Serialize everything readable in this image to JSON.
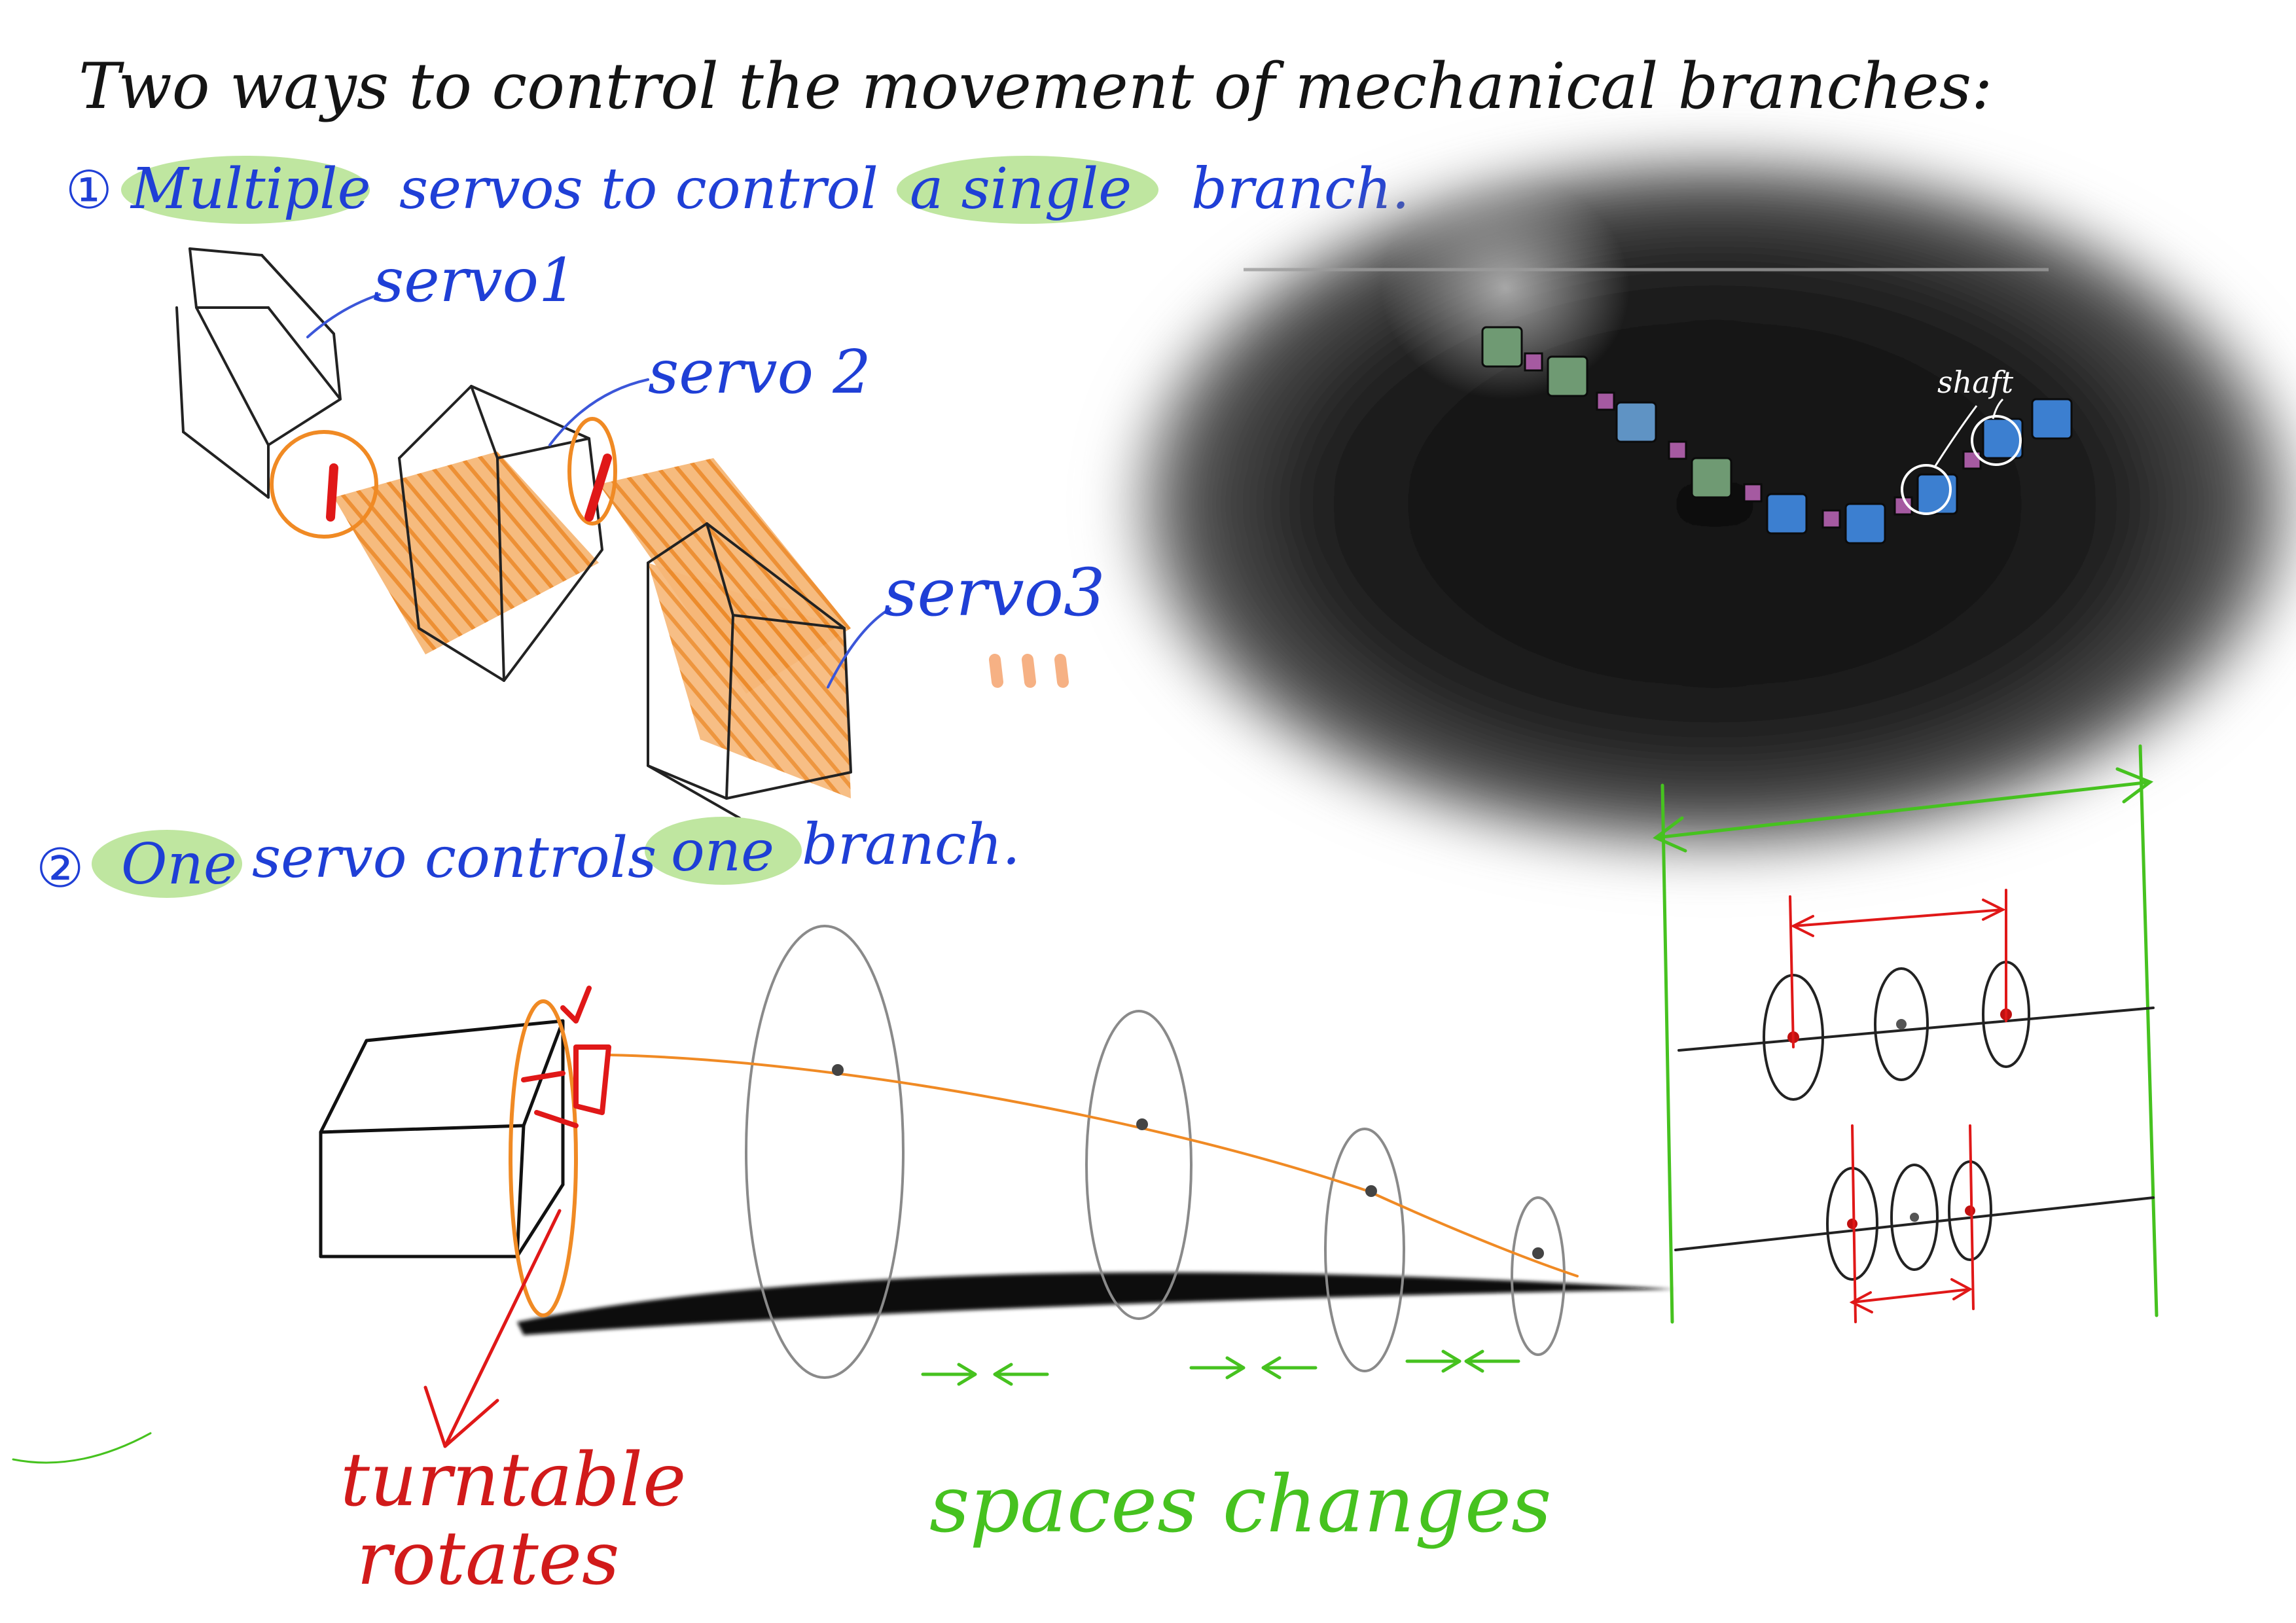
{
  "title": "Two ways to control the movement of mechanical branches:",
  "method1": {
    "number": "①",
    "parts": [
      "Multiple",
      "servos to control",
      "a single",
      "branch."
    ]
  },
  "method2": {
    "number": "②",
    "parts": [
      "One",
      "servo controls",
      "one",
      "branch."
    ]
  },
  "servo_labels": [
    "servo1",
    "servo 2",
    "servo3"
  ],
  "ellipsis": "...",
  "render_label": "shaft",
  "turntable_label": [
    "turntable",
    "rotates"
  ],
  "spaces_label": "spaces changes",
  "colors": {
    "ink": "#141414",
    "blue": "#1f3fd6",
    "highlight": "#bfe6a0",
    "orange": "#f08a24",
    "red": "#d11a1a",
    "green": "#46c21f",
    "pencil": "#8a8a8a"
  }
}
